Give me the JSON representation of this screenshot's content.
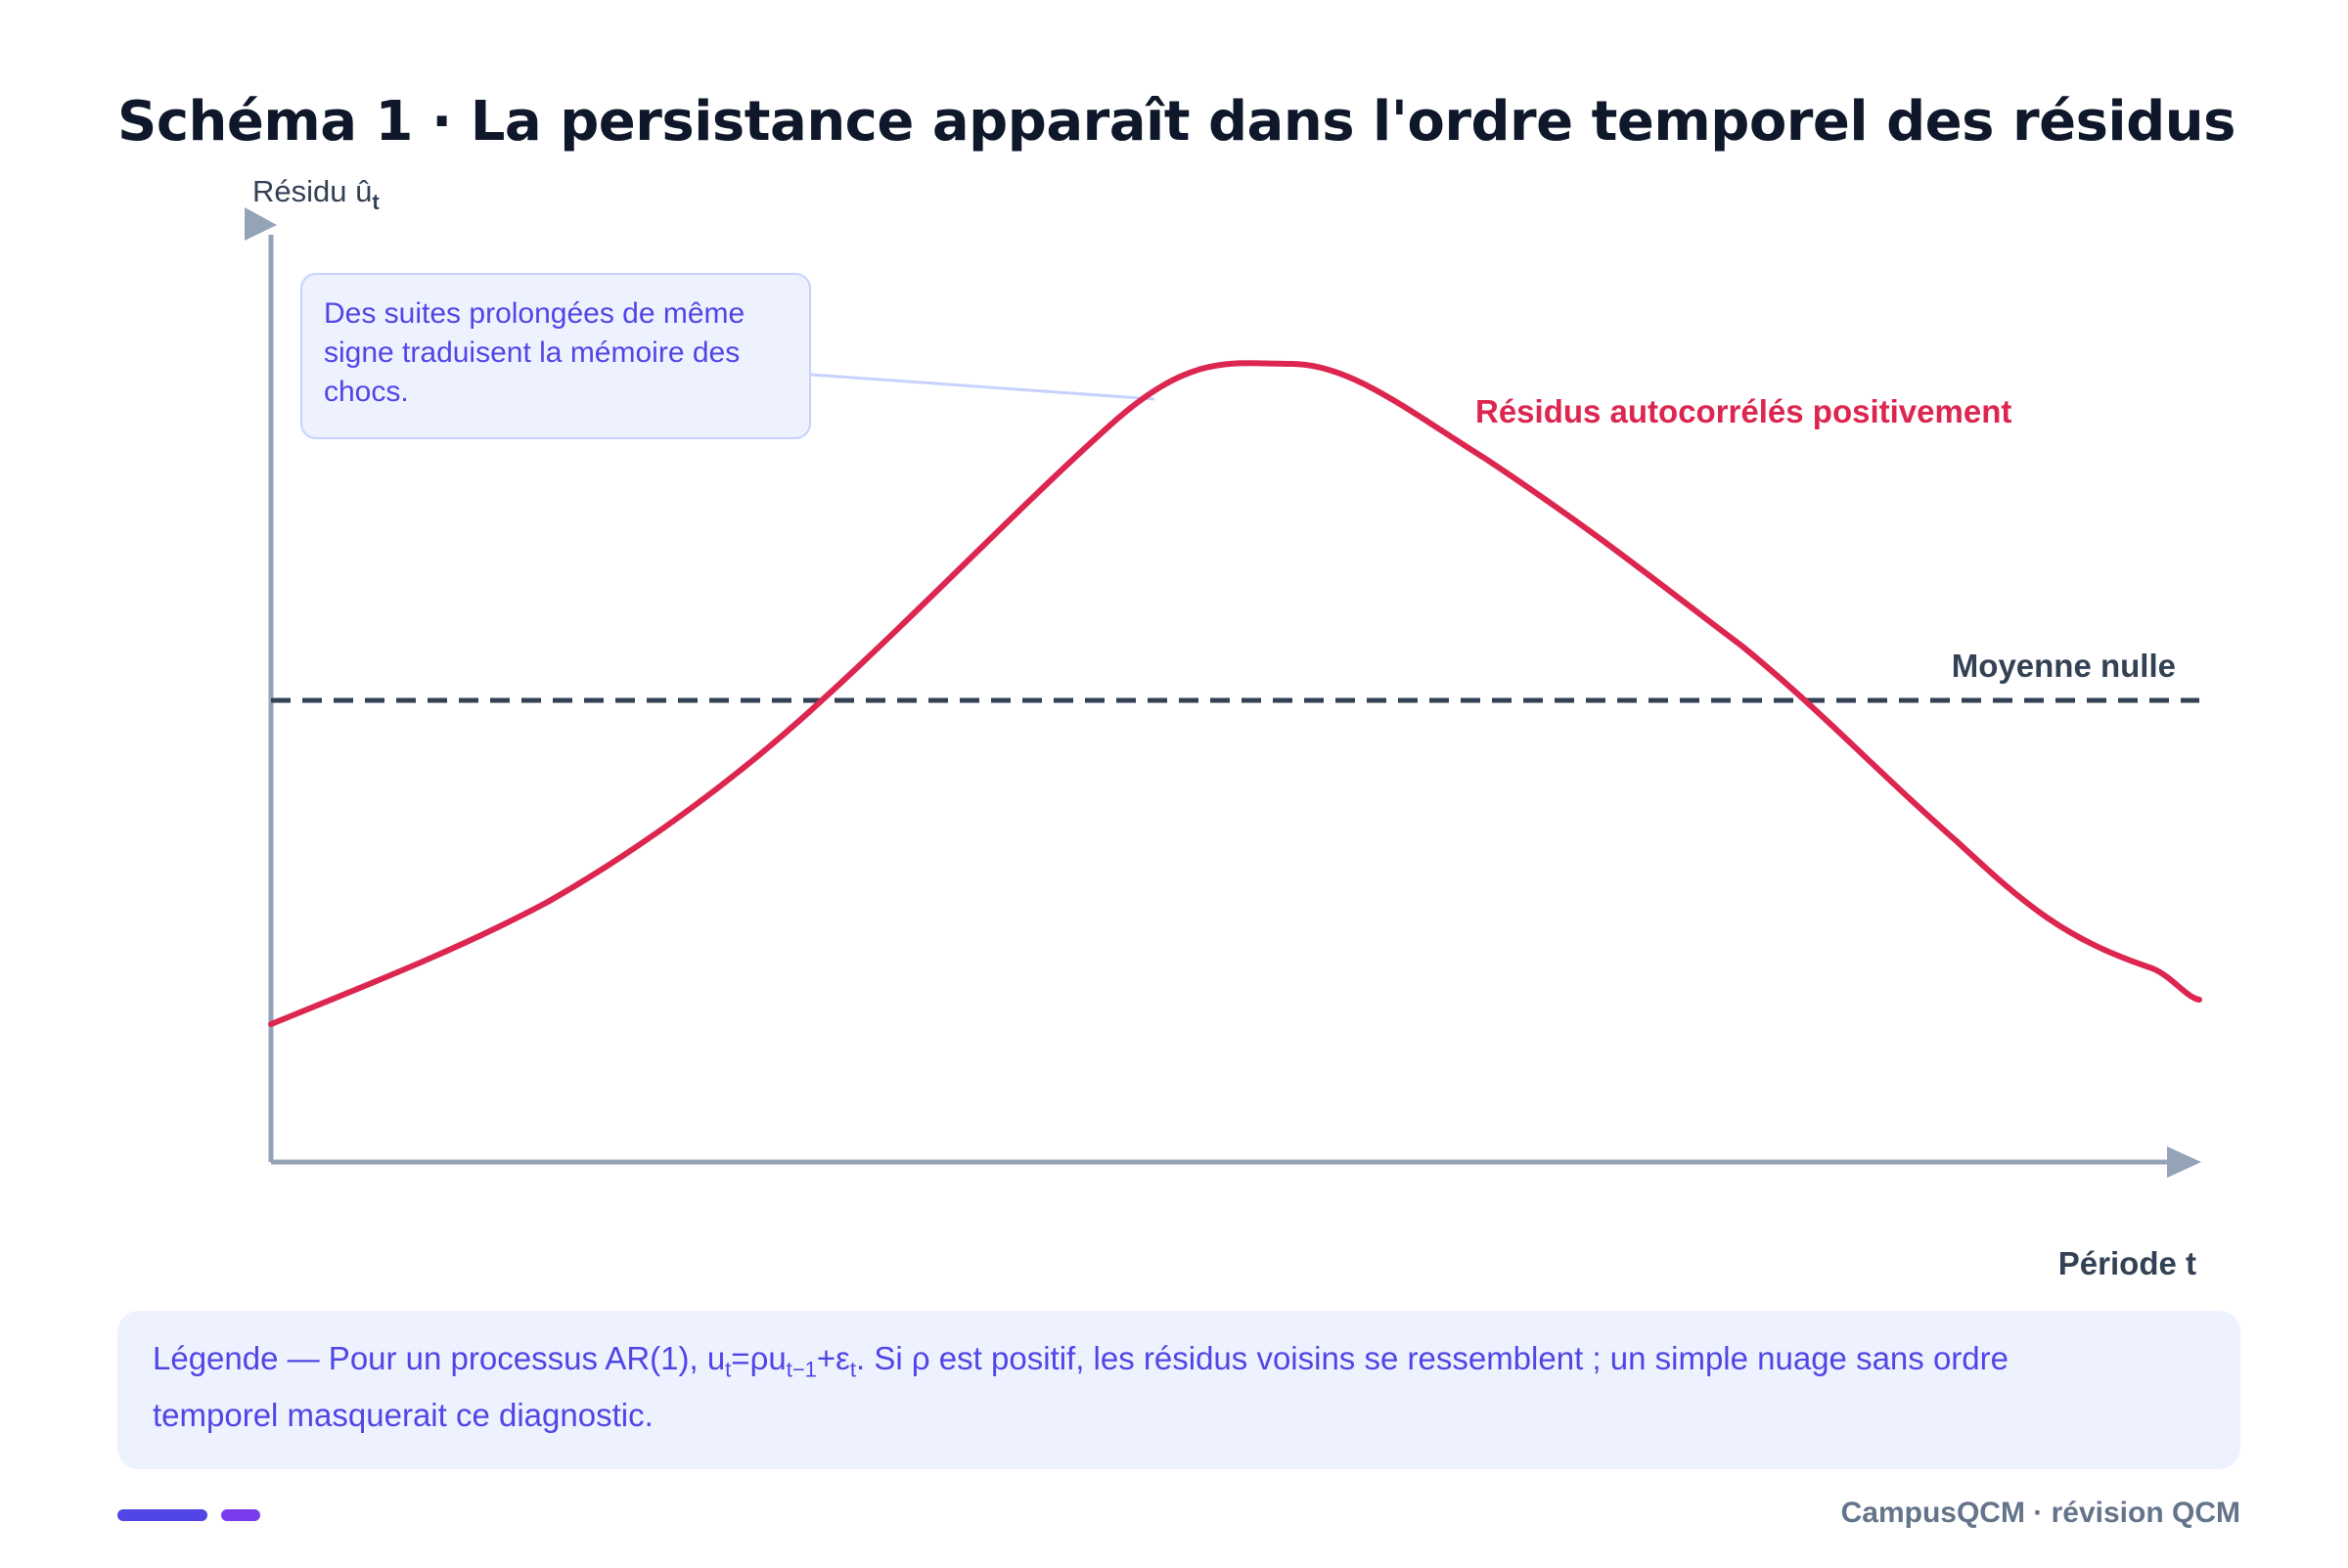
{
  "title": "Schéma 1 · La persistance apparaît dans l'ordre temporel des résidus",
  "diagram": {
    "y_axis_label": "Résidu û",
    "y_axis_label_sub": "t",
    "x_axis_label": "Période t",
    "mean_line_label": "Moyenne nulle",
    "curve_label": "Résidus autocorrélés positivement",
    "callout": "Des suites prolongées de même signe traduisent la mémoire des chocs.",
    "colors": {
      "curve": "#dc2650",
      "mean_line": "#334155",
      "axis": "#94a3b8",
      "callout_text": "#4f46e5"
    }
  },
  "legend": {
    "prefix": "Légende — Pour un processus AR(1), u",
    "sub_t1": "t",
    "eq1": "=ρu",
    "sub_t2": "t−1",
    "eq2": "+ε",
    "sub_t3": "t",
    "suffix": ". Si ρ est positif, les résidus voisins se ressemblent ; un simple nuage sans ordre temporel masquerait ce diagnostic."
  },
  "footer": {
    "brand": "CampusQCM · révision QCM"
  }
}
